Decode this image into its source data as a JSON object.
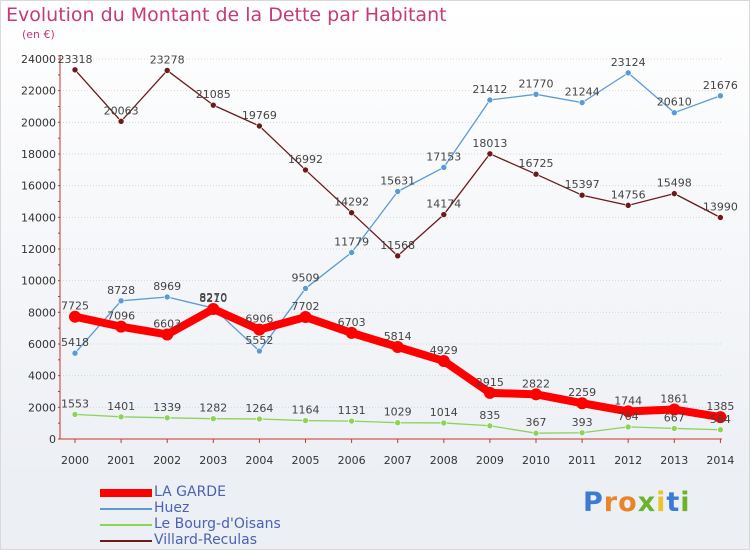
{
  "chart_data": {
    "type": "line",
    "title": "Evolution du Montant de la Dette par Habitant",
    "subtitle": "(en €)",
    "x": [
      "2000",
      "2001",
      "2002",
      "2003",
      "2004",
      "2005",
      "2006",
      "2007",
      "2008",
      "2009",
      "2010",
      "2011",
      "2012",
      "2013",
      "2014"
    ],
    "ylim": [
      0,
      24000
    ],
    "yticks": [
      0,
      2000,
      4000,
      6000,
      8000,
      10000,
      12000,
      14000,
      16000,
      18000,
      20000,
      22000,
      24000
    ],
    "grid": true,
    "legend_position": "bottom-left",
    "series": [
      {
        "name": "Villard-Reculas",
        "color": "#6b1a1a",
        "values": [
          23318,
          20063,
          23278,
          21085,
          19769,
          16992,
          14292,
          11568,
          14174,
          18013,
          16725,
          15397,
          14756,
          15498,
          13990
        ]
      },
      {
        "name": "Huez",
        "color": "#5b9bd5",
        "values": [
          5418,
          8728,
          8969,
          8270,
          5552,
          9509,
          11779,
          15631,
          17153,
          21412,
          21770,
          21244,
          23124,
          20610,
          21676
        ]
      },
      {
        "name": "Le Bourg-d'Oisans",
        "color": "#8dd35a",
        "values": [
          1553,
          1401,
          1339,
          1282,
          1264,
          1164,
          1131,
          1029,
          1014,
          835,
          367,
          393,
          764,
          667,
          584
        ]
      },
      {
        "name": "LA GARDE",
        "color": "#ff0000",
        "values": [
          7725,
          7096,
          6603,
          8210,
          6906,
          7702,
          6703,
          5814,
          4929,
          2915,
          2822,
          2259,
          1744,
          1861,
          1385
        ]
      }
    ],
    "legend_order": [
      "LA GARDE",
      "Huez",
      "Le Bourg-d'Oisans",
      "Villard-Reculas"
    ]
  },
  "brand": {
    "letters": [
      "P",
      "r",
      "o",
      "x",
      "i",
      "t",
      "i"
    ],
    "colors": [
      "#3b7bd6",
      "#e8852a",
      "#e8852a",
      "#6ab42d",
      "#e8c52a",
      "#3b7bd6",
      "#6ab42d"
    ]
  }
}
